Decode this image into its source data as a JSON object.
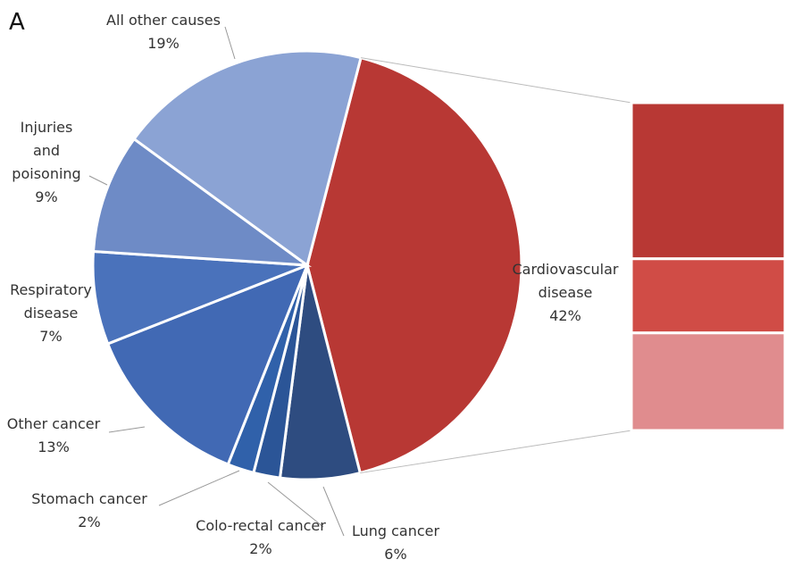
{
  "panel_label": "A",
  "chart_data": {
    "type": "pie-of-bar",
    "categories": [
      "Cardiovascular disease",
      "Lung cancer",
      "Colo-rectal cancer",
      "Stomach cancer",
      "Other cancer",
      "Respiratory disease",
      "Injuries and poisoning",
      "All other causes"
    ],
    "values": [
      42,
      6,
      2,
      2,
      13,
      7,
      9,
      19
    ],
    "value_labels": [
      "42%",
      "6%",
      "2%",
      "2%",
      "13%",
      "7%",
      "9%",
      "19%"
    ],
    "colors": [
      "#b83834",
      "#2e4c80",
      "#2b5597",
      "#3061aa",
      "#4169b4",
      "#4a72bb",
      "#6e8bc6",
      "#8ba3d4"
    ],
    "breakdown": {
      "values": [
        20,
        9.5,
        12.5
      ],
      "colors": [
        "#b83834",
        "#d04c46",
        "#e08c8e"
      ]
    }
  }
}
